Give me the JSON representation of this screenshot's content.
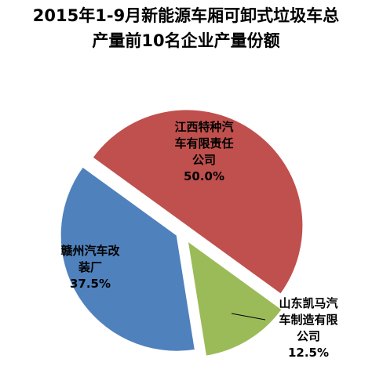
{
  "chart_data": {
    "type": "pie",
    "title_line1": "2015年1-9月新能源车厢可卸式垃圾车总",
    "title_line2": "产量前10名企业产量份额",
    "slices": [
      {
        "label_lines": [
          "江西特种汽",
          "车有限责任",
          "公司"
        ],
        "value": 50.0,
        "percent_label": "50.0%",
        "color": "#C0504D"
      },
      {
        "label_lines": [
          "山东凯马汽",
          "车制造有限",
          "公司"
        ],
        "value": 12.5,
        "percent_label": "12.5%",
        "color": "#9BBB59"
      },
      {
        "label_lines": [
          "赣州汽车改",
          "装厂"
        ],
        "value": 37.5,
        "percent_label": "37.5%",
        "color": "#4F81BD"
      }
    ],
    "exploded": true,
    "legend": "none"
  }
}
